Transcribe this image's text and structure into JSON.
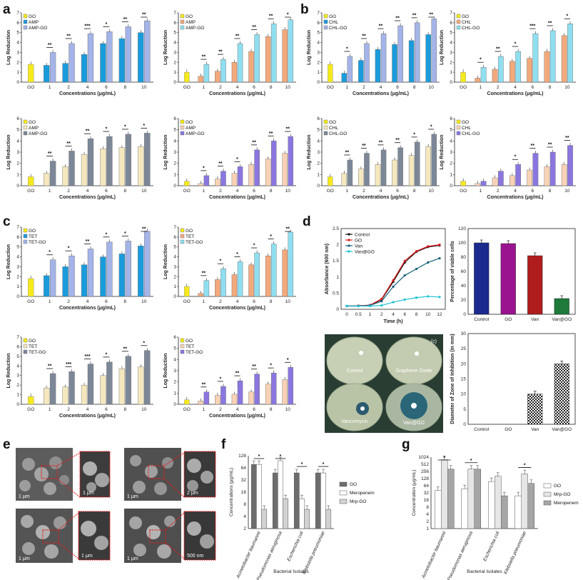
{
  "panels": {
    "a": "a",
    "b": "b",
    "c": "c",
    "d": "d",
    "e": "e",
    "f": "f",
    "g": "g"
  },
  "chart_data": [
    {
      "id": "a1",
      "panel": "a",
      "type": "bar",
      "xlabel": "Concentrations (μg/mL)",
      "ylabel": "Log Reduction",
      "ylim": [
        0,
        7
      ],
      "yticks": [
        0,
        1,
        2,
        3,
        4,
        5,
        6,
        7
      ],
      "control": {
        "name": "GO",
        "category": "GO",
        "value": 1.8,
        "color": "#f5ea1c"
      },
      "categories": [
        "1",
        "2",
        "4",
        "6",
        "8",
        "10"
      ],
      "series": [
        {
          "name": "AMP",
          "color": "#1a9bdc",
          "values": [
            1.7,
            1.9,
            2.8,
            3.9,
            4.4,
            5.0
          ]
        },
        {
          "name": "AMP-GO",
          "color": "#a4b4e8",
          "values": [
            3.0,
            3.9,
            4.9,
            5.1,
            5.6,
            6.2
          ]
        }
      ],
      "significance": [
        "**",
        "**",
        "***",
        "*",
        "**",
        "**"
      ]
    },
    {
      "id": "a2",
      "panel": "a",
      "type": "bar",
      "xlabel": "Concentrations (μg/mL)",
      "ylabel": "Log Reduction",
      "ylim": [
        0,
        7
      ],
      "yticks": [
        0,
        1,
        2,
        3,
        4,
        5,
        6,
        7
      ],
      "control": {
        "name": "GO",
        "category": "GO",
        "value": 1.0,
        "color": "#f5ea1c"
      },
      "categories": [
        "1",
        "2",
        "4",
        "6",
        "8",
        "10"
      ],
      "series": [
        {
          "name": "AMP",
          "color": "#f2a97c",
          "values": [
            0.6,
            1.1,
            2.0,
            3.1,
            4.6,
            5.3
          ]
        },
        {
          "name": "AMP-GO",
          "color": "#8fdff0",
          "values": [
            1.8,
            2.3,
            3.9,
            4.8,
            5.9,
            6.3
          ]
        }
      ],
      "significance": [
        "**",
        "**",
        "**",
        "**",
        "**",
        "*"
      ]
    },
    {
      "id": "a3",
      "panel": "a",
      "type": "bar",
      "xlabel": "Concentrations (μg/mL)",
      "ylabel": "Log Reduction",
      "ylim": [
        0,
        6
      ],
      "yticks": [
        0,
        1,
        2,
        3,
        4,
        5,
        6
      ],
      "control": {
        "name": "GO",
        "category": "GO",
        "value": 0.8,
        "color": "#f5ea1c"
      },
      "categories": [
        "1",
        "2",
        "4",
        "6",
        "8",
        "10"
      ],
      "series": [
        {
          "name": "AMP",
          "color": "#f5e8be",
          "values": [
            1.1,
            1.7,
            2.8,
            3.3,
            3.4,
            3.5
          ]
        },
        {
          "name": "AMP-GO",
          "color": "#7c8898",
          "values": [
            2.2,
            3.1,
            4.2,
            4.4,
            4.6,
            4.7
          ]
        }
      ],
      "significance": [
        "**",
        "**",
        "**",
        "*",
        "*",
        "*"
      ]
    },
    {
      "id": "a4",
      "panel": "a",
      "type": "bar",
      "xlabel": "Concentrations (μg/mL)",
      "ylabel": "Log Reduction",
      "ylim": [
        0,
        6
      ],
      "yticks": [
        0,
        1,
        2,
        3,
        4,
        5,
        6
      ],
      "control": {
        "name": "GO",
        "category": "GO",
        "value": 0.4,
        "color": "#f5ea1c"
      },
      "categories": [
        "1",
        "2",
        "4",
        "6",
        "8",
        "10"
      ],
      "series": [
        {
          "name": "AMP",
          "color": "#f9d2b6",
          "values": [
            0.2,
            0.6,
            1.1,
            1.9,
            2.4,
            2.9
          ]
        },
        {
          "name": "AMP-GO",
          "color": "#8b76e0",
          "values": [
            0.9,
            1.3,
            1.7,
            3.2,
            4.0,
            4.4
          ]
        }
      ],
      "significance": [
        "*",
        "**",
        "*",
        "**",
        "**",
        "**"
      ]
    },
    {
      "id": "b1",
      "panel": "b",
      "type": "bar",
      "xlabel": "Concentrations (μg/mL)",
      "ylabel": "Log Reduction",
      "ylim": [
        0,
        7
      ],
      "yticks": [
        0,
        1,
        2,
        3,
        4,
        5,
        6,
        7
      ],
      "control": {
        "name": "GO",
        "category": "GO",
        "value": 1.8,
        "color": "#f5ea1c"
      },
      "categories": [
        "1",
        "2",
        "4",
        "6",
        "8",
        "10"
      ],
      "series": [
        {
          "name": "CHL",
          "color": "#1a9bdc",
          "values": [
            0.9,
            2.2,
            3.3,
            3.8,
            4.2,
            4.8
          ]
        },
        {
          "name": "CHL-GO",
          "color": "#a4b4e8",
          "values": [
            2.6,
            3.9,
            4.9,
            5.7,
            6.0,
            6.4
          ]
        }
      ],
      "significance": [
        "*",
        "**",
        "**",
        "**",
        "**",
        "**"
      ]
    },
    {
      "id": "b2",
      "panel": "b",
      "type": "bar",
      "xlabel": "Concentrations (μg/mL)",
      "ylabel": "Log Reduction",
      "ylim": [
        0,
        7
      ],
      "yticks": [
        0,
        1,
        2,
        3,
        4,
        5,
        6,
        7
      ],
      "control": {
        "name": "GO",
        "category": "GO",
        "value": 1.0,
        "color": "#f5ea1c"
      },
      "categories": [
        "1",
        "2",
        "4",
        "6",
        "8",
        "10"
      ],
      "series": [
        {
          "name": "CHL",
          "color": "#f2a97c",
          "values": [
            0.4,
            1.3,
            2.1,
            2.4,
            3.1,
            4.7
          ]
        },
        {
          "name": "CHL-GO",
          "color": "#8fdff0",
          "values": [
            1.5,
            2.6,
            3.1,
            4.9,
            5.2,
            5.9
          ]
        }
      ],
      "significance": [
        "*",
        "**",
        "*",
        "***",
        "**",
        "*"
      ]
    },
    {
      "id": "b3",
      "panel": "b",
      "type": "bar",
      "xlabel": "Concentrations (μg/mL)",
      "ylabel": "Log Reduction",
      "ylim": [
        0,
        6
      ],
      "yticks": [
        0,
        1,
        2,
        3,
        4,
        5,
        6
      ],
      "control": {
        "name": "GO",
        "category": "GO",
        "value": 0.8,
        "color": "#f5ea1c"
      },
      "categories": [
        "1",
        "2",
        "4",
        "6",
        "8",
        "10"
      ],
      "series": [
        {
          "name": "CHL",
          "color": "#f5e8be",
          "values": [
            1.1,
            1.5,
            1.9,
            2.3,
            2.7,
            3.5
          ]
        },
        {
          "name": "CHL-GO",
          "color": "#7c8898",
          "values": [
            2.3,
            2.9,
            3.2,
            3.4,
            3.9,
            4.6
          ]
        }
      ],
      "significance": [
        "**",
        "**",
        "**",
        "**",
        "*",
        "*"
      ]
    },
    {
      "id": "b4",
      "panel": "b",
      "type": "bar",
      "xlabel": "Concentrations (μg/mL)",
      "ylabel": "Log Reduction",
      "ylim": [
        0,
        6
      ],
      "yticks": [
        0,
        1,
        2,
        3,
        4,
        5,
        6
      ],
      "control": {
        "name": "GO",
        "category": "GO",
        "value": 0.4,
        "color": "#f5ea1c"
      },
      "categories": [
        "1",
        "2",
        "4",
        "6",
        "8",
        "10"
      ],
      "series": [
        {
          "name": "CHL",
          "color": "#f9d2b6",
          "values": [
            0.2,
            0.7,
            0.9,
            1.4,
            1.7,
            1.9
          ]
        },
        {
          "name": "CHL-GO",
          "color": "#8b76e0",
          "values": [
            0.4,
            1.3,
            1.9,
            2.9,
            3.0,
            3.6
          ]
        }
      ],
      "significance": [
        "",
        "",
        "*",
        "**",
        "**",
        "**"
      ]
    },
    {
      "id": "c1",
      "panel": "c",
      "type": "bar",
      "xlabel": "Concentrations (μg/mL)",
      "ylabel": "Log Reduction",
      "ylim": [
        0,
        7
      ],
      "yticks": [
        0,
        1,
        2,
        3,
        4,
        5,
        6,
        7
      ],
      "control": {
        "name": "GO",
        "category": "GO",
        "value": 1.8,
        "color": "#f5ea1c"
      },
      "categories": [
        "1",
        "2",
        "4",
        "6",
        "8",
        "10"
      ],
      "series": [
        {
          "name": "TET",
          "color": "#1a9bdc",
          "values": [
            2.1,
            3.0,
            3.2,
            4.0,
            4.3,
            5.1
          ]
        },
        {
          "name": "TET-GO",
          "color": "#a4b4e8",
          "values": [
            3.7,
            4.1,
            4.8,
            5.5,
            5.6,
            6.6
          ]
        }
      ],
      "significance": [
        "*",
        "*",
        "**",
        "*",
        "*",
        "**"
      ]
    },
    {
      "id": "c2",
      "panel": "c",
      "type": "bar",
      "xlabel": "Concentrations (μg/mL)",
      "ylabel": "Log Reduction",
      "ylim": [
        0,
        7
      ],
      "yticks": [
        0,
        1,
        2,
        3,
        4,
        5,
        6,
        7
      ],
      "control": {
        "name": "GO",
        "category": "GO",
        "value": 1.0,
        "color": "#f5ea1c"
      },
      "categories": [
        "1",
        "2",
        "4",
        "6",
        "8",
        "10"
      ],
      "series": [
        {
          "name": "TET",
          "color": "#f2a97c",
          "values": [
            0.3,
            1.7,
            2.2,
            3.2,
            4.1,
            4.7
          ]
        },
        {
          "name": "TET-GO",
          "color": "#8fdff0",
          "values": [
            1.6,
            2.8,
            3.5,
            4.4,
            5.3,
            6.5
          ]
        }
      ],
      "significance": [
        "**",
        "*",
        "*",
        "*",
        "*",
        "**"
      ]
    },
    {
      "id": "c3",
      "panel": "c",
      "type": "bar",
      "xlabel": "Concentrations (μg/mL)",
      "ylabel": "Log Reduction",
      "ylim": [
        0,
        7
      ],
      "yticks": [
        0,
        1,
        2,
        3,
        4,
        5,
        6,
        7
      ],
      "control": {
        "name": "GO",
        "category": "GO",
        "value": 0.8,
        "color": "#f5ea1c"
      },
      "categories": [
        "1",
        "2",
        "4",
        "6",
        "8",
        "10"
      ],
      "series": [
        {
          "name": "TET",
          "color": "#f5e8be",
          "values": [
            1.7,
            1.8,
            2.0,
            3.0,
            3.7,
            3.9
          ]
        },
        {
          "name": "TET-GO",
          "color": "#7c8898",
          "values": [
            3.2,
            3.4,
            4.2,
            4.4,
            5.0,
            5.6
          ]
        }
      ],
      "significance": [
        "**",
        "***",
        "***",
        "*",
        "**",
        "*"
      ]
    },
    {
      "id": "c4",
      "panel": "c",
      "type": "bar",
      "xlabel": "Concentrations (μg/mL)",
      "ylabel": "Log Reduction",
      "ylim": [
        0,
        6
      ],
      "yticks": [
        0,
        1,
        2,
        3,
        4,
        5,
        6
      ],
      "control": {
        "name": "GO",
        "category": "GO",
        "value": 0.4,
        "color": "#f5ea1c"
      },
      "categories": [
        "1",
        "2",
        "4",
        "6",
        "8",
        "10"
      ],
      "series": [
        {
          "name": "TET",
          "color": "#f9d2b6",
          "values": [
            0.3,
            0.8,
            0.9,
            1.1,
            1.8,
            2.2
          ]
        },
        {
          "name": "TET-GO",
          "color": "#8b76e0",
          "values": [
            1.1,
            1.6,
            2.1,
            2.7,
            2.8,
            3.3
          ]
        }
      ],
      "significance": [
        "**",
        "*",
        "**",
        "**",
        "*",
        "*"
      ]
    },
    {
      "id": "d-growth",
      "panel": "d",
      "type": "line",
      "xlabel": "Time (h)",
      "ylabel": "Absorbance (600 nm)",
      "ylim": [
        0,
        2.5
      ],
      "yticks": [
        0,
        0.5,
        1,
        1.5,
        2,
        2.5
      ],
      "x": [
        "0",
        "0.5",
        "1",
        "2",
        "4",
        "6",
        "8",
        "10",
        "12"
      ],
      "legend_placement": "top-left",
      "series": [
        {
          "name": "Control",
          "color": "#111111",
          "values": [
            0.1,
            0.11,
            0.12,
            0.3,
            0.85,
            1.45,
            1.78,
            1.93,
            1.98
          ]
        },
        {
          "name": "GO",
          "color": "#e31a1c",
          "values": [
            0.1,
            0.11,
            0.13,
            0.32,
            0.9,
            1.5,
            1.8,
            1.95,
            2.0
          ]
        },
        {
          "name": "Van",
          "color": "#15607a",
          "values": [
            0.1,
            0.1,
            0.12,
            0.25,
            0.7,
            1.05,
            1.25,
            1.45,
            1.58
          ]
        },
        {
          "name": "Van@GO",
          "color": "#19c2d6",
          "values": [
            0.1,
            0.1,
            0.1,
            0.12,
            0.22,
            0.3,
            0.36,
            0.4,
            0.38
          ]
        }
      ]
    },
    {
      "id": "d-viable",
      "panel": "d",
      "type": "bar",
      "ylabel": "Percentage of viable cells",
      "ylim": [
        0,
        120
      ],
      "yticks": [
        0,
        20,
        40,
        60,
        80,
        100,
        120
      ],
      "categories": [
        "Control",
        "GO",
        "Van",
        "Van@GO"
      ],
      "values": [
        100,
        99,
        82,
        22
      ],
      "colors": [
        "#1b2a8f",
        "#9a148f",
        "#b01c1c",
        "#1d7a3a"
      ]
    },
    {
      "id": "d-zone",
      "panel": "d",
      "type": "bar",
      "ylabel": "Diameter of Zone of Inhibition (in mm)",
      "ylim": [
        0,
        30
      ],
      "yticks": [
        0,
        5,
        10,
        15,
        20,
        25,
        30
      ],
      "categories": [
        "Control",
        "GO",
        "Van",
        "Van@GO"
      ],
      "values": [
        0,
        0,
        10,
        20
      ]
    },
    {
      "id": "f",
      "panel": "f",
      "type": "bar",
      "xlabel": "Bacterial Isolates",
      "ylabel": "Concentrations (μg/mL)",
      "log_scale": true,
      "yticks": [
        "2",
        "4",
        "8",
        "16",
        "32",
        "64",
        "128"
      ],
      "categories": [
        "Acinetobacter baumannii",
        "Pseudomonas aeruginosa",
        "Escherichia coli",
        "Klebsiella pneumoniae"
      ],
      "legend_placement": "right",
      "series": [
        {
          "name": "GO",
          "color": "#6d6d6d",
          "values": [
            78,
            48,
            48,
            48
          ]
        },
        {
          "name": "Meropenem",
          "color": "#ffffff",
          "values": [
            78,
            96,
            11,
            48
          ]
        },
        {
          "name": "Mrp-GO",
          "color": "#d2d2d2",
          "values": [
            6,
            11,
            6,
            6
          ]
        }
      ],
      "significance": [
        "*",
        "*",
        "*",
        "*"
      ]
    },
    {
      "id": "g",
      "panel": "g",
      "type": "bar",
      "xlabel": "Bacterial Isolates",
      "ylabel": "Concentration (μg/mL)",
      "log_scale": true,
      "yticks": [
        "1",
        "2",
        "4",
        "8",
        "16",
        "32",
        "64",
        "128",
        "256",
        "512",
        "1024"
      ],
      "categories": [
        "Acinetobacter baumannii",
        "Pseudomonas aeruginosa",
        "Escherichia coli",
        "Klebsiella pneumoniae"
      ],
      "legend_placement": "right",
      "series": [
        {
          "name": "GO",
          "color": "#ffffff",
          "values": [
            40,
            48,
            96,
            24
          ]
        },
        {
          "name": "Mrp-GO",
          "color": "#e6e6e6",
          "values": [
            800,
            320,
            160,
            200
          ]
        },
        {
          "name": "Meropenem",
          "color": "#a6a6a6",
          "values": [
            320,
            320,
            24,
            80
          ]
        }
      ],
      "significance": [
        "*",
        "*",
        "",
        "*"
      ]
    }
  ],
  "photos": {
    "discs": [
      "Control",
      "Graphene Oxide",
      "Vancomycin",
      "Van@GO"
    ],
    "corner": "(c)",
    "sem_scales": [
      "1 μm",
      "1 μm",
      "1 μm",
      "2 μm",
      "1 μm",
      "1 μm",
      "1 μm",
      "500 nm"
    ]
  }
}
